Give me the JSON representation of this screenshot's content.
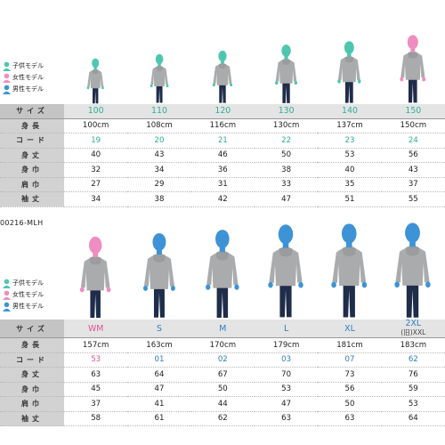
{
  "colors": {
    "kids": "#4fc6b0",
    "female": "#ef8cc0",
    "male": "#3d93d6",
    "hoodie": "#a9abac",
    "pants": "#1f2c4a",
    "teal_text": "#2eae98",
    "blue_text": "#2b7fbf",
    "pink_text": "#e0509a"
  },
  "legend": {
    "kids": "子供モデル",
    "female": "女性モデル",
    "male": "男性モデル"
  },
  "icons": {
    "legend": "person-head-icon"
  },
  "kids_chart": {
    "labels": {
      "size": "サイズ",
      "height": "身長",
      "code": "コード",
      "length": "身丈",
      "width": "身巾",
      "shoulder": "肩巾",
      "sleeve": "袖丈"
    },
    "columns": [
      {
        "size": "100",
        "height": "100cm",
        "code": "19",
        "length": "40",
        "width": "32",
        "shoulder": "27",
        "sleeve": "34",
        "model": "kids",
        "model_height": 100
      },
      {
        "size": "110",
        "height": "108cm",
        "code": "20",
        "length": "43",
        "width": "34",
        "shoulder": "29",
        "sleeve": "38",
        "model": "kids",
        "model_height": 108
      },
      {
        "size": "120",
        "height": "116cm",
        "code": "21",
        "length": "46",
        "width": "36",
        "shoulder": "31",
        "sleeve": "42",
        "model": "kids",
        "model_height": 116
      },
      {
        "size": "130",
        "height": "130cm",
        "code": "22",
        "length": "50",
        "width": "38",
        "shoulder": "33",
        "sleeve": "47",
        "model": "kids",
        "model_height": 130
      },
      {
        "size": "140",
        "height": "137cm",
        "code": "23",
        "length": "53",
        "width": "40",
        "shoulder": "35",
        "sleeve": "51",
        "model": "kids",
        "model_height": 137
      },
      {
        "size": "150",
        "height": "150cm",
        "code": "24",
        "length": "56",
        "width": "43",
        "shoulder": "37",
        "sleeve": "55",
        "model": "female",
        "model_height": 150
      }
    ]
  },
  "adult_chart": {
    "product_code": "00216-MLH",
    "labels": {
      "size": "サイズ",
      "height": "身長",
      "code": "コード",
      "length": "身丈",
      "width": "身巾",
      "shoulder": "肩巾",
      "sleeve": "袖丈"
    },
    "columns": [
      {
        "size": "WM",
        "height": "157cm",
        "code": "53",
        "length": "63",
        "width": "45",
        "shoulder": "37",
        "sleeve": "58",
        "model": "female",
        "model_height": 157
      },
      {
        "size": "S",
        "height": "163cm",
        "code": "01",
        "length": "64",
        "width": "47",
        "shoulder": "41",
        "sleeve": "61",
        "model": "male",
        "model_height": 163
      },
      {
        "size": "M",
        "height": "170cm",
        "code": "02",
        "length": "67",
        "width": "50",
        "shoulder": "44",
        "sleeve": "62",
        "model": "male",
        "model_height": 170
      },
      {
        "size": "L",
        "height": "179cm",
        "code": "03",
        "length": "70",
        "width": "53",
        "shoulder": "47",
        "sleeve": "63",
        "model": "male",
        "model_height": 179
      },
      {
        "size": "XL",
        "height": "181cm",
        "code": "07",
        "length": "73",
        "width": "56",
        "shoulder": "50",
        "sleeve": "63",
        "model": "male",
        "model_height": 181
      },
      {
        "size": "2XL",
        "size_note": "(旧)XXL",
        "height": "183cm",
        "code": "62",
        "length": "76",
        "width": "59",
        "shoulder": "53",
        "sleeve": "64",
        "model": "male",
        "model_height": 183
      }
    ]
  }
}
